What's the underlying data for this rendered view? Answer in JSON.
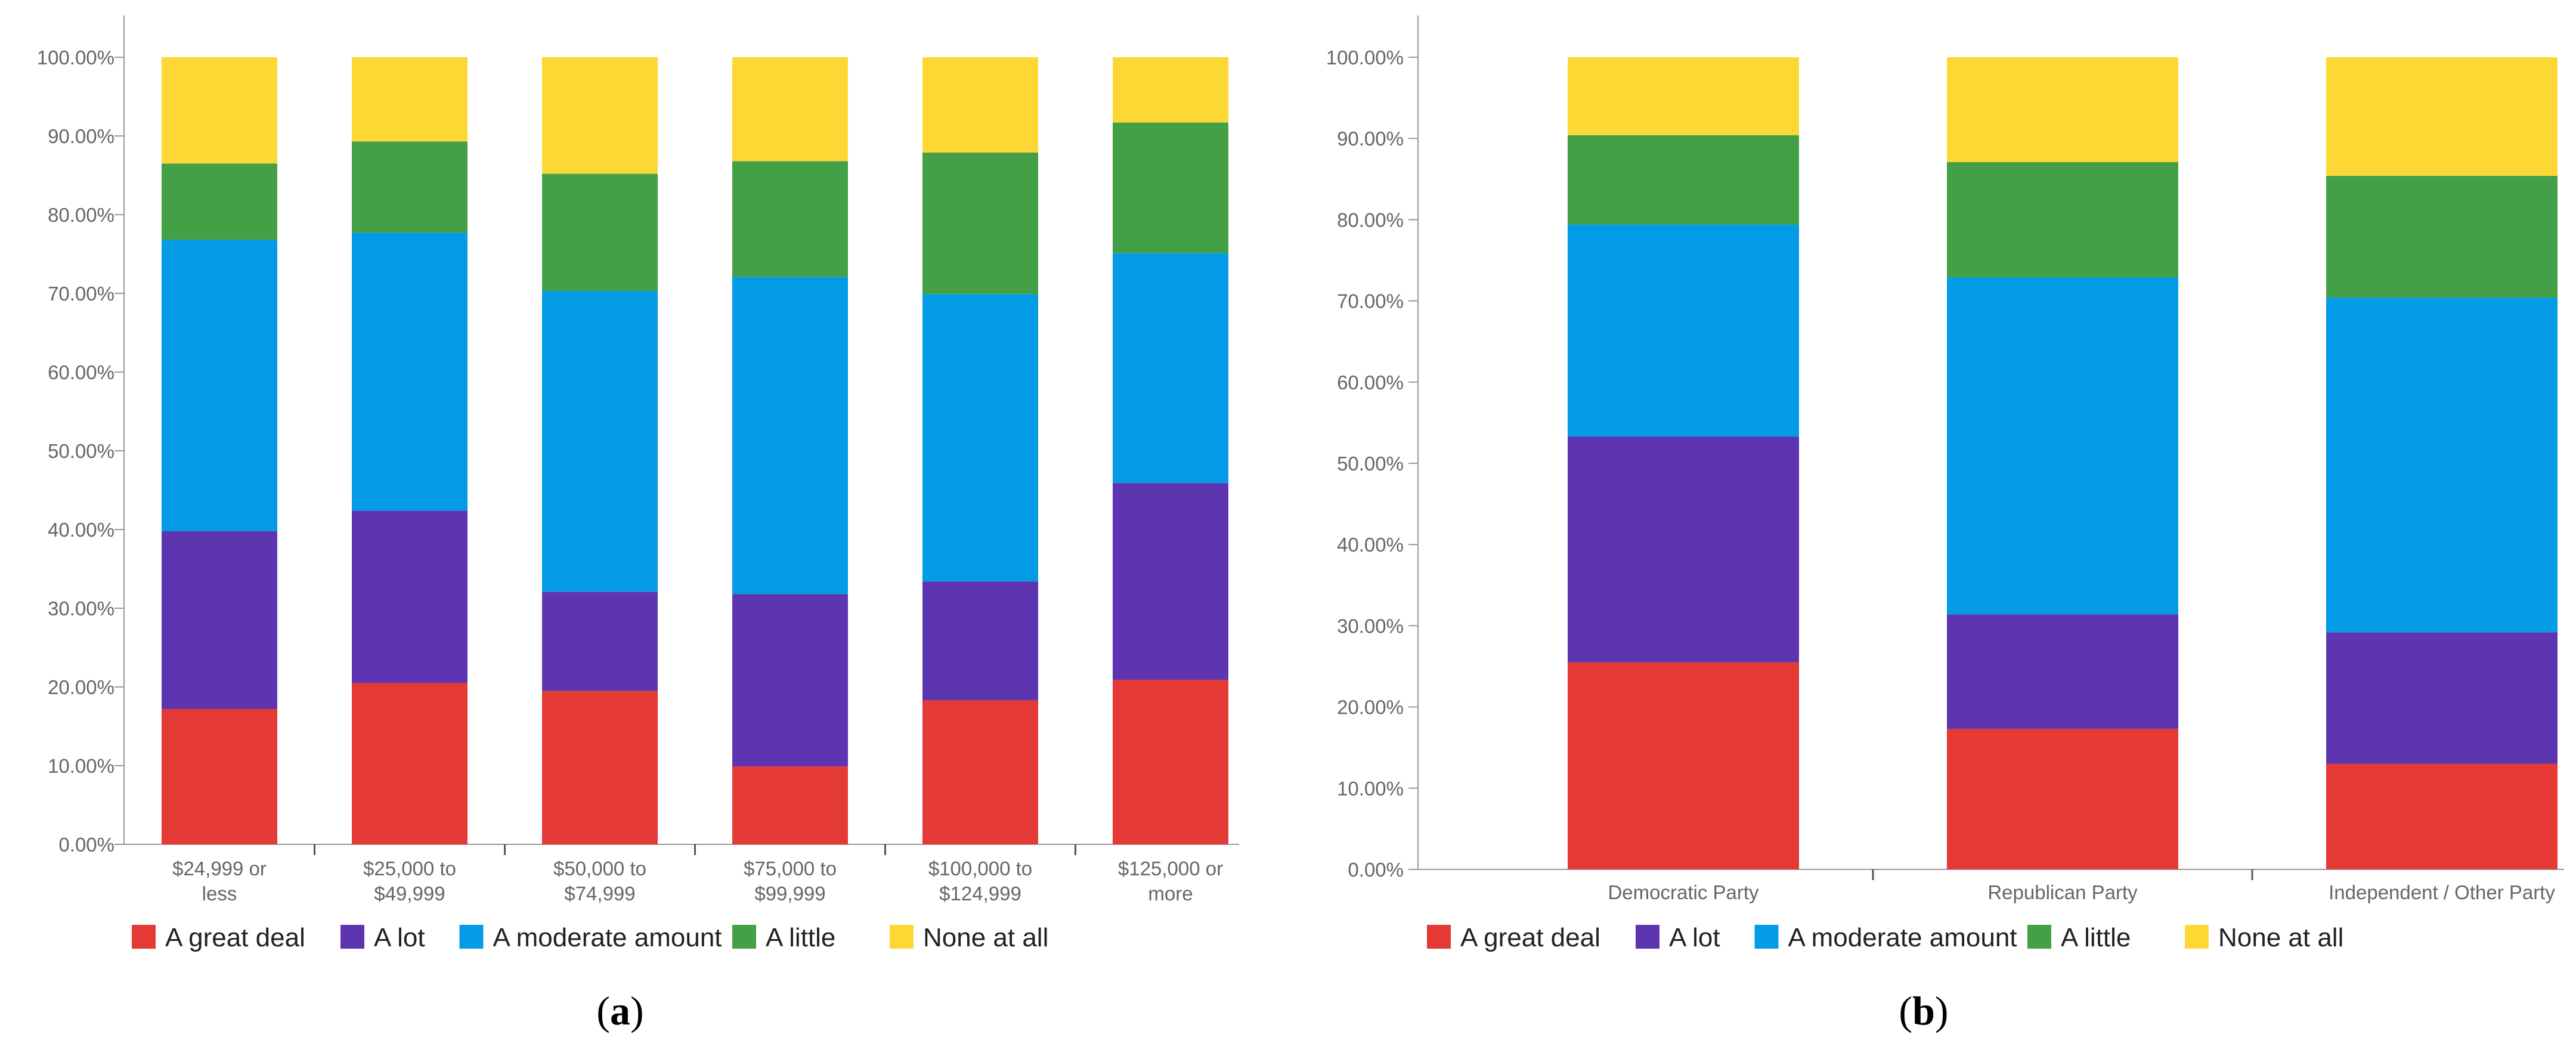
{
  "figure": {
    "panel_a_label": "a",
    "panel_b_label": "b"
  },
  "colors": {
    "A great deal": "#E53935",
    "A lot": "#5E35B1",
    "A moderate amount": "#039BE5",
    "A little": "#43A047",
    "None at all": "#FDD835",
    "axis": "#999999",
    "text": "#666666"
  },
  "chart_data": [
    {
      "type": "bar",
      "stacked": true,
      "panel": "a",
      "title": "",
      "xlabel": "",
      "ylabel": "",
      "ylim": [
        0,
        100
      ],
      "yticks": [
        "0.00%",
        "10.00%",
        "20.00%",
        "30.00%",
        "40.00%",
        "50.00%",
        "60.00%",
        "70.00%",
        "80.00%",
        "90.00%",
        "100.00%"
      ],
      "categories": [
        [
          "$24,999 or",
          "less"
        ],
        [
          "$25,000 to",
          "$49,999"
        ],
        [
          "$50,000 to",
          "$74,999"
        ],
        [
          "$75,000 to",
          "$99,999"
        ],
        [
          "$100,000 to",
          "$124,999"
        ],
        [
          "$125,000 or",
          "more"
        ]
      ],
      "series": [
        {
          "name": "A great deal",
          "values": [
            17.2,
            20.5,
            19.5,
            9.9,
            18.3,
            20.9
          ]
        },
        {
          "name": "A lot",
          "values": [
            22.6,
            21.9,
            12.6,
            21.9,
            15.1,
            25.0
          ]
        },
        {
          "name": "A moderate amount",
          "values": [
            37.0,
            35.3,
            38.2,
            40.3,
            36.5,
            29.2
          ]
        },
        {
          "name": "A little",
          "values": [
            9.7,
            11.6,
            14.9,
            14.7,
            18.0,
            16.6
          ]
        },
        {
          "name": "None at all",
          "values": [
            13.5,
            10.7,
            14.8,
            13.2,
            12.1,
            8.3
          ]
        }
      ],
      "legend": [
        "A great deal",
        "A lot",
        "A moderate amount",
        "A little",
        "None at all"
      ],
      "legend_position": "bottom"
    },
    {
      "type": "bar",
      "stacked": true,
      "panel": "b",
      "title": "",
      "xlabel": "",
      "ylabel": "",
      "ylim": [
        0,
        100
      ],
      "yticks": [
        "0.00%",
        "10.00%",
        "20.00%",
        "30.00%",
        "40.00%",
        "50.00%",
        "60.00%",
        "70.00%",
        "80.00%",
        "90.00%",
        "100.00%"
      ],
      "categories": [
        [
          "Democratic Party"
        ],
        [
          "Republican Party"
        ],
        [
          "Independent / Other Party"
        ]
      ],
      "series": [
        {
          "name": "A great deal",
          "values": [
            25.5,
            17.3,
            13.0
          ]
        },
        {
          "name": "A lot",
          "values": [
            27.8,
            14.1,
            16.2
          ]
        },
        {
          "name": "A moderate amount",
          "values": [
            26.1,
            41.5,
            41.2
          ]
        },
        {
          "name": "A little",
          "values": [
            11.0,
            14.2,
            15.0
          ]
        },
        {
          "name": "None at all",
          "values": [
            9.6,
            12.9,
            14.6
          ]
        }
      ],
      "legend": [
        "A great deal",
        "A lot",
        "A moderate amount",
        "A little",
        "None at all"
      ],
      "legend_position": "bottom"
    }
  ]
}
